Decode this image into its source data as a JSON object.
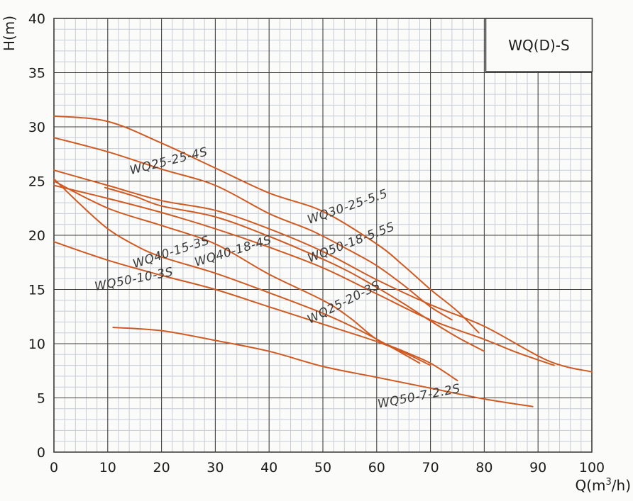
{
  "title_box": {
    "label": "WQ(D)-S"
  },
  "axes": {
    "x": {
      "label_parts": [
        "Q(m",
        "3",
        "/h)"
      ],
      "min": 0,
      "max": 100,
      "major_step": 10,
      "minor_step": 2,
      "ticks": [
        "0",
        "10",
        "20",
        "30",
        "40",
        "50",
        "60",
        "70",
        "80",
        "90",
        "100"
      ]
    },
    "y": {
      "label": "H(m)",
      "min": 0,
      "max": 40,
      "major_step": 5,
      "minor_step": 1,
      "ticks": [
        "0",
        "5",
        "10",
        "15",
        "20",
        "25",
        "30",
        "35",
        "40"
      ]
    }
  },
  "colors": {
    "curve": "#cf5a22",
    "grid_minor": "#c6cdd7",
    "grid_major": "#3f3f3f",
    "plot_border": "#3f3f3f",
    "text": "#1c1c1c",
    "background": "#fbfbfa"
  },
  "chart_data": {
    "type": "line",
    "xlabel": "Q(m3/h)",
    "ylabel": "H(m)",
    "xlim": [
      0,
      100
    ],
    "ylim": [
      0,
      40
    ],
    "grid": "on",
    "legend_box_label": "WQ(D)-S",
    "series": [
      {
        "name": "WQ30-25-5.5",
        "points": [
          [
            0,
            31
          ],
          [
            10,
            30.5
          ],
          [
            20,
            28.5
          ],
          [
            30,
            26.2
          ],
          [
            40,
            23.9
          ],
          [
            50,
            22.2
          ],
          [
            60,
            19.2
          ],
          [
            65,
            17.2
          ],
          [
            70,
            15.0
          ],
          [
            75,
            13.0
          ],
          [
            79,
            11.0
          ]
        ]
      },
      {
        "name": "WQ25-25-4S",
        "points": [
          [
            0,
            29
          ],
          [
            10,
            27.7
          ],
          [
            20,
            26.1
          ],
          [
            30,
            24.6
          ],
          [
            40,
            22.0
          ],
          [
            48,
            20.4
          ],
          [
            55,
            18.6
          ],
          [
            60,
            17.2
          ],
          [
            65,
            15.4
          ],
          [
            70,
            13.4
          ],
          [
            74,
            12.2
          ]
        ]
      },
      {
        "name": "WQ50-18-5.5S",
        "points": [
          [
            0,
            26
          ],
          [
            10,
            24.6
          ],
          [
            20,
            23.2
          ],
          [
            30,
            22.3
          ],
          [
            40,
            20.6
          ],
          [
            50,
            18.5
          ],
          [
            60,
            15.9
          ],
          [
            70,
            13.6
          ],
          [
            80,
            11.6
          ],
          [
            92,
            8.4
          ],
          [
            100,
            7.4
          ]
        ]
      },
      {
        "name": "WQ40-15-3S",
        "points": [
          [
            0,
            25.2
          ],
          [
            5,
            22.8
          ],
          [
            10,
            20.6
          ],
          [
            15,
            19.1
          ],
          [
            20,
            18.0
          ],
          [
            30,
            16.5
          ],
          [
            40,
            14.7
          ],
          [
            50,
            12.8
          ],
          [
            57,
            11.2
          ],
          [
            63,
            9.6
          ],
          [
            68,
            8.2
          ]
        ]
      },
      {
        "name": "WQ25-20-3S",
        "points": [
          [
            0,
            25.0
          ],
          [
            10,
            22.5
          ],
          [
            20,
            20.9
          ],
          [
            30,
            19.2
          ],
          [
            40,
            16.4
          ],
          [
            50,
            14.0
          ],
          [
            55,
            12.4
          ],
          [
            60,
            10.4
          ],
          [
            65,
            9.3
          ],
          [
            70,
            8.2
          ],
          [
            75,
            6.6
          ]
        ]
      },
      {
        "name": null,
        "points": [
          [
            0,
            24.6
          ],
          [
            10,
            23.4
          ],
          [
            20,
            22.1
          ],
          [
            30,
            20.6
          ],
          [
            40,
            18.9
          ],
          [
            50,
            17.0
          ],
          [
            60,
            14.6
          ],
          [
            70,
            12.2
          ],
          [
            80,
            10.4
          ],
          [
            86,
            9.2
          ],
          [
            93,
            8.0
          ]
        ]
      },
      {
        "name": "WQ50-10-3S",
        "points": [
          [
            0,
            19.4
          ],
          [
            10,
            17.7
          ],
          [
            20,
            16.3
          ],
          [
            30,
            15.0
          ],
          [
            40,
            13.4
          ],
          [
            50,
            11.8
          ],
          [
            60,
            10.2
          ],
          [
            65,
            9.2
          ],
          [
            70,
            8.0
          ]
        ]
      },
      {
        "name": "WQ40-18-4S",
        "points": [
          [
            9.5,
            24.4
          ],
          [
            15,
            23.6
          ],
          [
            20,
            22.7
          ],
          [
            30,
            21.7
          ],
          [
            40,
            19.9
          ],
          [
            50,
            17.8
          ],
          [
            55,
            16.6
          ],
          [
            60,
            15.2
          ],
          [
            65,
            13.7
          ],
          [
            70,
            12.1
          ],
          [
            75,
            10.6
          ],
          [
            80,
            9.3
          ]
        ]
      },
      {
        "name": "WQ50-7-2.2S",
        "points": [
          [
            11,
            11.5
          ],
          [
            20,
            11.2
          ],
          [
            30,
            10.3
          ],
          [
            40,
            9.3
          ],
          [
            50,
            7.9
          ],
          [
            60,
            6.9
          ],
          [
            70,
            5.9
          ],
          [
            80,
            4.9
          ],
          [
            89,
            4.2
          ]
        ]
      }
    ],
    "labels": [
      {
        "text": "WQ25-25-4S",
        "q": 21.5,
        "h": 26.5,
        "rot": -14
      },
      {
        "text": "WQ30-25-5.5",
        "q": 54.8,
        "h": 22.3,
        "rot": -19
      },
      {
        "text": "WQ50-18-5.5S",
        "q": 55.5,
        "h": 19.0,
        "rot": -21
      },
      {
        "text": "WQ40-15-3S",
        "q": 22.0,
        "h": 18.1,
        "rot": -18
      },
      {
        "text": "WQ40-18-4S",
        "q": 33.5,
        "h": 18.2,
        "rot": -17
      },
      {
        "text": "WQ50-10-3S",
        "q": 15.0,
        "h": 15.6,
        "rot": -11
      },
      {
        "text": "WQ25-20-3S",
        "q": 54.2,
        "h": 13.5,
        "rot": -27
      },
      {
        "text": "WQ50-7-2.2S",
        "q": 68.0,
        "h": 4.8,
        "rot": -11
      }
    ]
  }
}
